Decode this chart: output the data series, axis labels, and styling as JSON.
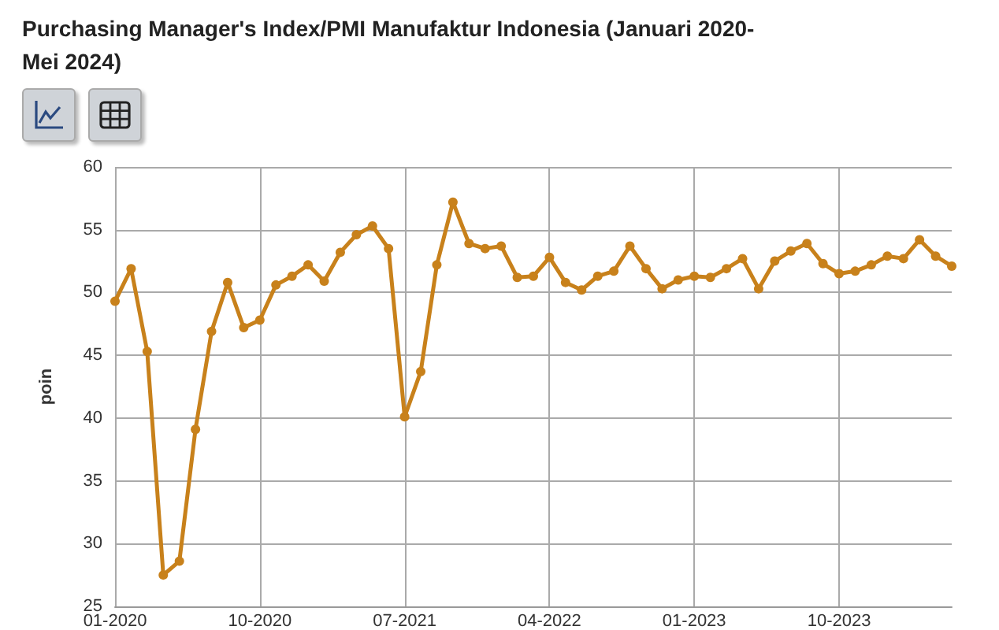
{
  "chart_data": {
    "type": "line",
    "title": "Purchasing Manager's Index/PMI Manufaktur Indonesia (Januari 2020-Mei 2024)",
    "ylabel": "poin",
    "categories": [
      "01-2020",
      null,
      null,
      null,
      null,
      null,
      null,
      null,
      null,
      "10-2020",
      null,
      null,
      null,
      null,
      null,
      null,
      null,
      null,
      "07-2021",
      null,
      null,
      null,
      null,
      null,
      null,
      null,
      null,
      "04-2022",
      null,
      null,
      null,
      null,
      null,
      null,
      null,
      null,
      "01-2023",
      null,
      null,
      null,
      null,
      null,
      null,
      null,
      null,
      "10-2023",
      null,
      null,
      null,
      null,
      null,
      null,
      null
    ],
    "series": [
      {
        "color": "#c8811b",
        "values": [
          49.3,
          51.9,
          45.3,
          27.5,
          28.6,
          39.1,
          46.9,
          50.8,
          47.2,
          47.8,
          50.6,
          51.3,
          52.2,
          50.9,
          53.2,
          54.6,
          55.3,
          53.5,
          40.1,
          43.7,
          52.2,
          57.2,
          53.9,
          53.5,
          53.7,
          51.2,
          51.3,
          52.8,
          50.8,
          50.2,
          51.3,
          51.7,
          53.7,
          51.9,
          50.3,
          51.0,
          51.3,
          51.2,
          51.9,
          52.7,
          50.3,
          52.5,
          53.3,
          53.9,
          52.3,
          51.5,
          51.7,
          52.2,
          52.9,
          52.7,
          54.2,
          52.9,
          52.1
        ]
      }
    ],
    "ylim": [
      25,
      60
    ],
    "yticks": [
      25,
      30,
      35,
      40,
      45,
      50,
      55,
      60
    ],
    "grid": true,
    "marker": "circle",
    "line_style": "solid"
  }
}
